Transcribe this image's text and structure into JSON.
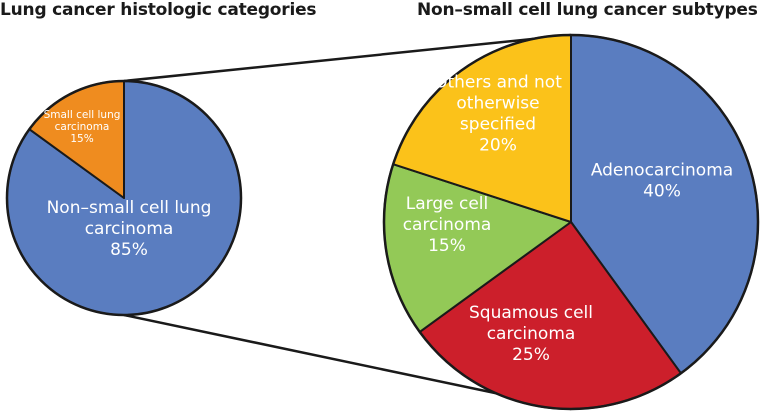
{
  "chart_data": [
    {
      "type": "pie",
      "title": "Lung cancer histologic categories",
      "slices": [
        {
          "name": "Non–small cell lung carcinoma",
          "label_lines": [
            "Non–small cell lung",
            "carcinoma"
          ],
          "value": 85,
          "pct_label": "85%",
          "color": "#5a7dc0",
          "label_color": "#ffffff"
        },
        {
          "name": "Small cell lung carcinoma",
          "label_lines": [
            "Small cell lung",
            "carcinoma"
          ],
          "value": 15,
          "pct_label": "15%",
          "color": "#ef8c1f",
          "label_color": "#2a2a2a"
        }
      ]
    },
    {
      "type": "pie",
      "title": "Non–small cell lung cancer subtypes",
      "slices": [
        {
          "name": "Adenocarcinoma",
          "label_lines": [
            "Adenocarcinoma"
          ],
          "value": 40,
          "pct_label": "40%",
          "color": "#5a7dc0",
          "label_color": "#ffffff"
        },
        {
          "name": "Squamous cell carcinoma",
          "label_lines": [
            "Squamous cell",
            "carcinoma"
          ],
          "value": 25,
          "pct_label": "25%",
          "color": "#cc1f2b",
          "label_color": "#ffffff"
        },
        {
          "name": "Large cell carcinoma",
          "label_lines": [
            "Large cell",
            "carcinoma"
          ],
          "value": 15,
          "pct_label": "15%",
          "color": "#93c957",
          "label_color": "#2a2a2a"
        },
        {
          "name": "Others and not otherwise specified",
          "label_lines": [
            "Others and not",
            "otherwise",
            "specified"
          ],
          "value": 20,
          "pct_label": "20%",
          "color": "#fbc21a",
          "label_color": "#2a2a2a"
        }
      ]
    }
  ],
  "colors": {
    "outline": "#1a1a1a",
    "background": "#ffffff"
  }
}
